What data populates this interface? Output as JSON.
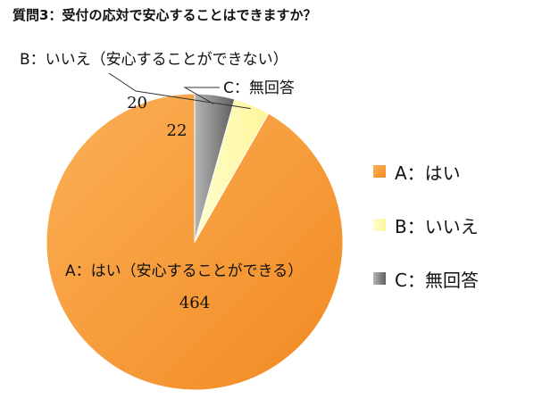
{
  "chart_data": {
    "type": "pie",
    "title": "質問3：受付の応対で安心することはできますか？",
    "categories": [
      "A：はい",
      "B：いいえ",
      "C：無回答"
    ],
    "values": [
      464,
      20,
      22
    ],
    "slice_labels": [
      "A：はい（安心することができる）",
      "B：いいえ（安心することができない）",
      "C：無回答"
    ],
    "colors": [
      "#F79A38",
      "#FFFBB0",
      "#8E8E8E"
    ],
    "legend_position": "right",
    "legend": [
      "A：はい",
      "B：いいえ",
      "C：無回答"
    ]
  }
}
